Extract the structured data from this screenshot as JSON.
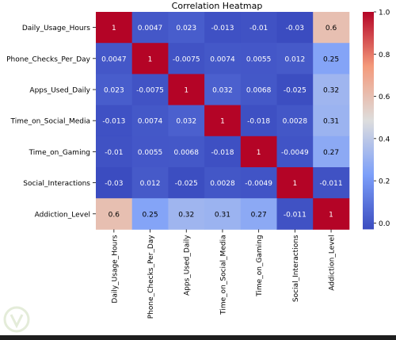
{
  "chart_data": {
    "type": "heatmap",
    "title": "Correlation Heatmap",
    "labels": [
      "Daily_Usage_Hours",
      "Phone_Checks_Per_Day",
      "Apps_Used_Daily",
      "Time_on_Social_Media",
      "Time_on_Gaming",
      "Social_Interactions",
      "Addiction_Level"
    ],
    "matrix": [
      [
        1,
        0.0047,
        0.023,
        -0.013,
        -0.01,
        -0.03,
        0.6
      ],
      [
        0.0047,
        1,
        -0.0075,
        0.0074,
        0.0055,
        0.012,
        0.25
      ],
      [
        0.023,
        -0.0075,
        1,
        0.032,
        0.0068,
        -0.025,
        0.32
      ],
      [
        -0.013,
        0.0074,
        0.032,
        1,
        -0.018,
        0.0028,
        0.31
      ],
      [
        -0.01,
        0.0055,
        0.0068,
        -0.018,
        1,
        -0.0049,
        0.27
      ],
      [
        -0.03,
        0.012,
        -0.025,
        0.0028,
        -0.0049,
        1,
        -0.011
      ],
      [
        0.6,
        0.25,
        0.32,
        0.31,
        0.27,
        -0.011,
        1
      ]
    ],
    "cell_labels": [
      [
        "1",
        "0.0047",
        "0.023",
        "-0.013",
        "-0.01",
        "-0.03",
        "0.6"
      ],
      [
        "0.0047",
        "1",
        "-0.0075",
        "0.0074",
        "0.0055",
        "0.012",
        "0.25"
      ],
      [
        "0.023",
        "-0.0075",
        "1",
        "0.032",
        "0.0068",
        "-0.025",
        "0.32"
      ],
      [
        "-0.013",
        "0.0074",
        "0.032",
        "1",
        "-0.018",
        "0.0028",
        "0.31"
      ],
      [
        "-0.01",
        "0.0055",
        "0.0068",
        "-0.018",
        "1",
        "-0.0049",
        "0.27"
      ],
      [
        "-0.03",
        "0.012",
        "-0.025",
        "0.0028",
        "-0.0049",
        "1",
        "-0.011"
      ],
      [
        "0.6",
        "0.25",
        "0.32",
        "0.31",
        "0.27",
        "-0.011",
        "1"
      ]
    ],
    "colormap": "coolwarm",
    "colorbar": {
      "range": [
        -0.03,
        1
      ],
      "ticks": [
        "0.0",
        "0.2",
        "0.4",
        "0.6",
        "0.8",
        "1.0"
      ],
      "tick_values": [
        0,
        0.2,
        0.4,
        0.6,
        0.8,
        1.0
      ]
    }
  }
}
